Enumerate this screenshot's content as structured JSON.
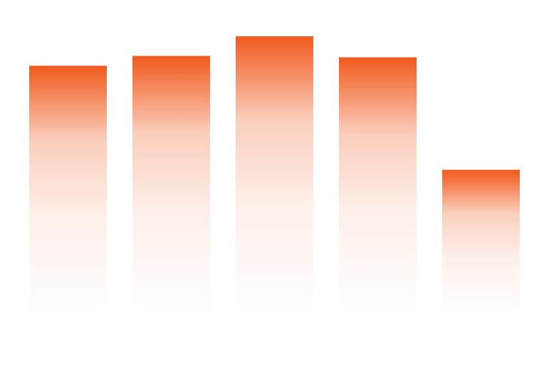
{
  "chart_data": {
    "type": "bar",
    "categories": [
      "",
      "",
      "",
      "",
      ""
    ],
    "values": [
      88,
      91.5,
      98.5,
      91,
      51
    ],
    "ylim": [
      0,
      100
    ],
    "grid": false,
    "legend": "none",
    "colors": {
      "bar_top": "#f15a1e",
      "bar_fade": "#ffffff"
    }
  }
}
